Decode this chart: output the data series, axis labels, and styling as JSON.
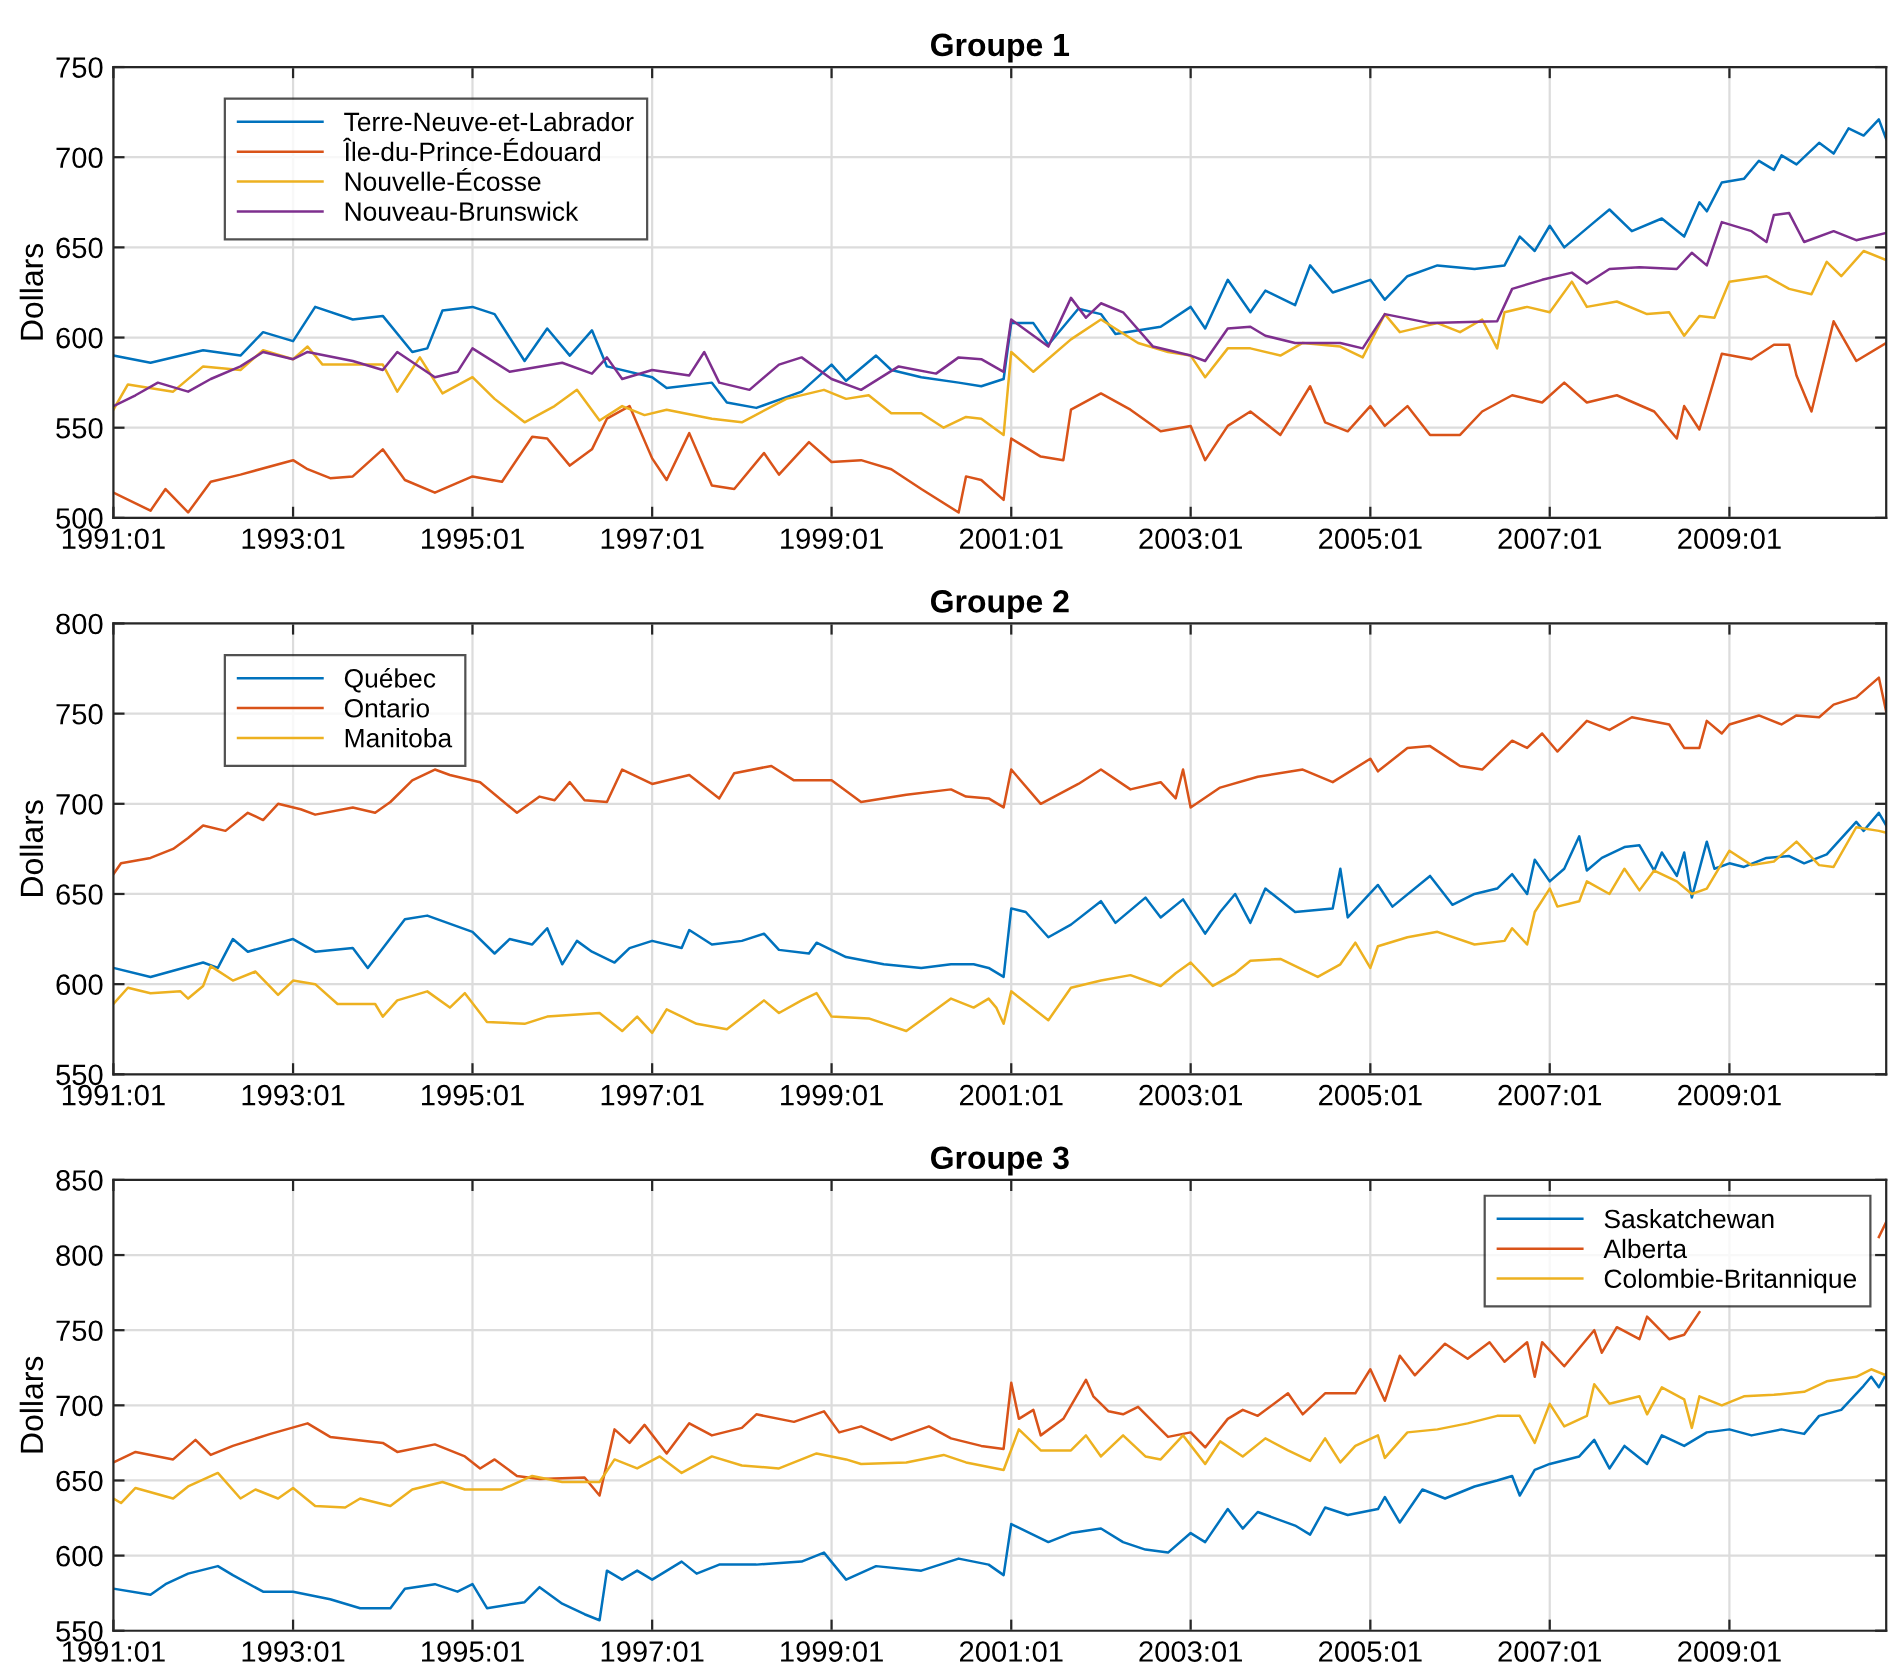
{
  "chart_data": [
    {
      "type": "line",
      "title": "Groupe 1",
      "ylabel": "Dollars",
      "xlim": [
        "1991-01",
        "2010-10"
      ],
      "ylim": [
        500,
        750
      ],
      "yticks": [
        500,
        550,
        600,
        650,
        700,
        750
      ],
      "xticks": [
        {
          "value": "1991-01",
          "label": "1991:01"
        },
        {
          "value": "1993-01",
          "label": "1993:01"
        },
        {
          "value": "1995-01",
          "label": "1995:01"
        },
        {
          "value": "1997-01",
          "label": "1997:01"
        },
        {
          "value": "1999-01",
          "label": "1999:01"
        },
        {
          "value": "2001-01",
          "label": "2001:01"
        },
        {
          "value": "2003-01",
          "label": "2003:01"
        },
        {
          "value": "2005-01",
          "label": "2005:01"
        },
        {
          "value": "2007-01",
          "label": "2007:01"
        },
        {
          "value": "2009-01",
          "label": "2009:01"
        }
      ],
      "grid": true,
      "legend": "top left",
      "series": [
        {
          "name": "Terre-Neuve-et-Labrador",
          "color": "#0072bd",
          "x": [
            "1991-01",
            "1991-06",
            "1992-01",
            "1992-06",
            "1992-09",
            "1993-01",
            "1993-04",
            "1993-09",
            "1994-01",
            "1994-05",
            "1994-07",
            "1994-09",
            "1995-01",
            "1995-04",
            "1995-08",
            "1995-11",
            "1996-02",
            "1996-05",
            "1996-07",
            "1997-01",
            "1997-03",
            "1997-09",
            "1997-11",
            "1998-03",
            "1998-09",
            "1999-01",
            "1999-03",
            "1999-07",
            "1999-09",
            "2000-01",
            "2000-06",
            "2000-09",
            "2000-12",
            "2001-01",
            "2001-04",
            "2001-06",
            "2001-10",
            "2002-01",
            "2002-03",
            "2002-09",
            "2003-01",
            "2003-03",
            "2003-06",
            "2003-09",
            "2003-11",
            "2004-03",
            "2004-05",
            "2004-08",
            "2005-01",
            "2005-03",
            "2005-06",
            "2005-10",
            "2006-03",
            "2006-07",
            "2006-09",
            "2006-11",
            "2007-01",
            "2007-03",
            "2007-07",
            "2007-09",
            "2007-12",
            "2008-04",
            "2008-07",
            "2008-09",
            "2008-10",
            "2008-12",
            "2009-03",
            "2009-05",
            "2009-07",
            "2009-08",
            "2009-10",
            "2010-01",
            "2010-03",
            "2010-05",
            "2010-07",
            "2010-09",
            "2010-10"
          ],
          "values": [
            590,
            586,
            593,
            590,
            603,
            598,
            617,
            610,
            612,
            592,
            594,
            615,
            617,
            613,
            587,
            605,
            590,
            604,
            584,
            578,
            572,
            575,
            564,
            561,
            570,
            585,
            576,
            590,
            582,
            578,
            575,
            573,
            577,
            608,
            608,
            596,
            616,
            613,
            602,
            606,
            617,
            605,
            632,
            614,
            626,
            618,
            640,
            625,
            632,
            621,
            634,
            640,
            638,
            640,
            656,
            648,
            662,
            650,
            664,
            671,
            659,
            666,
            656,
            675,
            670,
            686,
            688,
            698,
            693,
            701,
            696,
            708,
            702,
            716,
            712,
            721,
            710
          ]
        },
        {
          "name": "Île-du-Prince-Édouard",
          "color": "#d95319",
          "x": [
            "1991-01",
            "1991-06",
            "1991-08",
            "1991-11",
            "1992-02",
            "1992-06",
            "1993-01",
            "1993-03",
            "1993-06",
            "1993-09",
            "1994-01",
            "1994-04",
            "1994-08",
            "1995-01",
            "1995-05",
            "1995-09",
            "1995-11",
            "1996-02",
            "1996-05",
            "1996-07",
            "1996-10",
            "1997-01",
            "1997-03",
            "1997-06",
            "1997-09",
            "1997-12",
            "1998-04",
            "1998-06",
            "1998-10",
            "1999-01",
            "1999-05",
            "1999-09",
            "2000-01",
            "2000-06",
            "2000-07",
            "2000-09",
            "2000-12",
            "2001-01",
            "2001-05",
            "2001-08",
            "2001-09",
            "2002-01",
            "2002-05",
            "2002-09",
            "2003-01",
            "2003-03",
            "2003-06",
            "2003-09",
            "2004-01",
            "2004-05",
            "2004-07",
            "2004-10",
            "2005-01",
            "2005-03",
            "2005-06",
            "2005-09",
            "2006-01",
            "2006-04",
            "2006-08",
            "2006-12",
            "2007-03",
            "2007-06",
            "2007-10",
            "2008-03",
            "2008-06",
            "2008-07",
            "2008-09",
            "2008-12",
            "2009-04",
            "2009-07",
            "2009-09",
            "2009-10",
            "2009-12",
            "2010-03",
            "2010-06",
            "2010-10"
          ],
          "values": [
            514,
            504,
            516,
            503,
            520,
            524,
            532,
            527,
            522,
            523,
            538,
            521,
            514,
            523,
            520,
            545,
            544,
            529,
            538,
            555,
            562,
            533,
            521,
            547,
            518,
            516,
            536,
            524,
            542,
            531,
            532,
            527,
            516,
            503,
            523,
            521,
            510,
            544,
            534,
            532,
            560,
            569,
            560,
            548,
            551,
            532,
            551,
            559,
            546,
            573,
            553,
            548,
            562,
            551,
            562,
            546,
            546,
            559,
            568,
            564,
            575,
            564,
            568,
            559,
            544,
            562,
            549,
            591,
            588,
            596,
            596,
            579,
            559,
            609,
            587,
            597
          ]
        },
        {
          "name": "Nouvelle-Écosse",
          "color": "#edb120",
          "x": [
            "1991-01",
            "1991-03",
            "1991-09",
            "1992-01",
            "1992-06",
            "1992-09",
            "1993-01",
            "1993-03",
            "1993-05",
            "1994-01",
            "1994-03",
            "1994-06",
            "1994-09",
            "1995-01",
            "1995-04",
            "1995-08",
            "1995-12",
            "1996-03",
            "1996-06",
            "1996-09",
            "1996-12",
            "1997-03",
            "1997-09",
            "1998-01",
            "1998-07",
            "1998-12",
            "1999-03",
            "1999-06",
            "1999-09",
            "2000-01",
            "2000-04",
            "2000-07",
            "2000-09",
            "2000-12",
            "2001-01",
            "2001-04",
            "2001-09",
            "2002-01",
            "2002-06",
            "2002-10",
            "2003-01",
            "2003-03",
            "2003-06",
            "2003-09",
            "2004-01",
            "2004-04",
            "2004-09",
            "2004-12",
            "2005-03",
            "2005-05",
            "2005-10",
            "2006-01",
            "2006-04",
            "2006-06",
            "2006-07",
            "2006-10",
            "2007-01",
            "2007-04",
            "2007-06",
            "2007-10",
            "2008-02",
            "2008-05",
            "2008-07",
            "2008-09",
            "2008-11",
            "2009-01",
            "2009-06",
            "2009-09",
            "2009-12",
            "2010-02",
            "2010-04",
            "2010-07",
            "2010-10"
          ],
          "values": [
            560,
            574,
            570,
            584,
            582,
            593,
            588,
            595,
            585,
            585,
            570,
            589,
            569,
            578,
            566,
            553,
            562,
            571,
            554,
            562,
            557,
            560,
            555,
            553,
            566,
            571,
            566,
            568,
            558,
            558,
            550,
            556,
            555,
            546,
            592,
            581,
            599,
            610,
            597,
            592,
            590,
            578,
            594,
            594,
            590,
            597,
            595,
            589,
            613,
            603,
            608,
            603,
            610,
            594,
            614,
            617,
            614,
            631,
            617,
            620,
            613,
            614,
            601,
            612,
            611,
            631,
            634,
            627,
            624,
            642,
            634,
            648,
            643
          ]
        },
        {
          "name": "Nouveau-Brunswick",
          "color": "#7e2f8e",
          "x": [
            "1991-01",
            "1991-04",
            "1991-07",
            "1991-11",
            "1992-02",
            "1992-06",
            "1992-09",
            "1993-01",
            "1993-03",
            "1993-09",
            "1994-01",
            "1994-03",
            "1994-08",
            "1994-11",
            "1995-01",
            "1995-06",
            "1996-01",
            "1996-05",
            "1996-07",
            "1996-09",
            "1997-01",
            "1997-06",
            "1997-08",
            "1997-10",
            "1998-02",
            "1998-06",
            "1998-09",
            "1999-01",
            "1999-05",
            "1999-10",
            "2000-03",
            "2000-06",
            "2000-09",
            "2000-12",
            "2001-01",
            "2001-06",
            "2001-09",
            "2001-11",
            "2002-01",
            "2002-04",
            "2002-08",
            "2003-01",
            "2003-03",
            "2003-06",
            "2003-09",
            "2003-11",
            "2004-03",
            "2004-09",
            "2004-12",
            "2005-03",
            "2005-09",
            "2006-06",
            "2006-08",
            "2006-12",
            "2007-04",
            "2007-06",
            "2007-09",
            "2008-01",
            "2008-06",
            "2008-08",
            "2008-10",
            "2008-12",
            "2009-04",
            "2009-06",
            "2009-07",
            "2009-09",
            "2009-11",
            "2010-03",
            "2010-06",
            "2010-10"
          ],
          "values": [
            562,
            568,
            575,
            570,
            577,
            584,
            592,
            588,
            592,
            587,
            582,
            592,
            578,
            581,
            594,
            581,
            586,
            580,
            589,
            577,
            582,
            579,
            592,
            575,
            571,
            585,
            589,
            577,
            571,
            584,
            580,
            589,
            588,
            581,
            610,
            595,
            622,
            611,
            619,
            614,
            595,
            590,
            587,
            605,
            606,
            601,
            597,
            597,
            594,
            613,
            608,
            609,
            627,
            632,
            636,
            630,
            638,
            639,
            638,
            647,
            640,
            664,
            659,
            653,
            668,
            669,
            653,
            659,
            654,
            658
          ]
        }
      ]
    },
    {
      "type": "line",
      "title": "Groupe 2",
      "ylabel": "Dollars",
      "xlim": [
        "1991-01",
        "2010-10"
      ],
      "ylim": [
        550,
        800
      ],
      "yticks": [
        550,
        600,
        650,
        700,
        750,
        800
      ],
      "xticks": [
        {
          "value": "1991-01",
          "label": "1991:01"
        },
        {
          "value": "1993-01",
          "label": "1993:01"
        },
        {
          "value": "1995-01",
          "label": "1995:01"
        },
        {
          "value": "1997-01",
          "label": "1997:01"
        },
        {
          "value": "1999-01",
          "label": "1999:01"
        },
        {
          "value": "2001-01",
          "label": "2001:01"
        },
        {
          "value": "2003-01",
          "label": "2003:01"
        },
        {
          "value": "2005-01",
          "label": "2005:01"
        },
        {
          "value": "2007-01",
          "label": "2007:01"
        },
        {
          "value": "2009-01",
          "label": "2009:01"
        }
      ],
      "grid": true,
      "legend": "top left",
      "series": [
        {
          "name": "Québec",
          "color": "#0072bd",
          "x": [
            "1991-01",
            "1991-06",
            "1992-01",
            "1992-03",
            "1992-05",
            "1992-07",
            "1993-01",
            "1993-04",
            "1993-09",
            "1993-11",
            "1994-04",
            "1994-07",
            "1995-01",
            "1995-04",
            "1995-06",
            "1995-09",
            "1995-11",
            "1996-01",
            "1996-03",
            "1996-05",
            "1996-08",
            "1996-10",
            "1997-01",
            "1997-05",
            "1997-06",
            "1997-09",
            "1998-01",
            "1998-04",
            "1998-06",
            "1998-10",
            "1998-11",
            "1999-03",
            "1999-08",
            "2000-01",
            "2000-05",
            "2000-08",
            "2000-10",
            "2000-12",
            "2001-01",
            "2001-03",
            "2001-06",
            "2001-09",
            "2002-01",
            "2002-03",
            "2002-07",
            "2002-09",
            "2002-12",
            "2003-03",
            "2003-05",
            "2003-07",
            "2003-09",
            "2003-11",
            "2004-03",
            "2004-08",
            "2004-09",
            "2004-10",
            "2005-02",
            "2005-04",
            "2005-09",
            "2005-12",
            "2006-03",
            "2006-06",
            "2006-08",
            "2006-10",
            "2006-11",
            "2007-01",
            "2007-03",
            "2007-05",
            "2007-06",
            "2007-08",
            "2007-11",
            "2008-01",
            "2008-03",
            "2008-04",
            "2008-06",
            "2008-07",
            "2008-08",
            "2008-10",
            "2008-11",
            "2009-01",
            "2009-03",
            "2009-06",
            "2009-09",
            "2009-11",
            "2010-02",
            "2010-06",
            "2010-07",
            "2010-09",
            "2010-10"
          ],
          "values": [
            609,
            604,
            612,
            609,
            625,
            618,
            625,
            618,
            620,
            609,
            636,
            638,
            629,
            617,
            625,
            622,
            631,
            611,
            624,
            618,
            612,
            620,
            624,
            620,
            630,
            622,
            624,
            628,
            619,
            617,
            623,
            615,
            611,
            609,
            611,
            611,
            609,
            604,
            642,
            640,
            626,
            633,
            646,
            634,
            648,
            637,
            647,
            628,
            640,
            650,
            634,
            653,
            640,
            642,
            664,
            637,
            655,
            643,
            660,
            644,
            650,
            653,
            661,
            650,
            669,
            657,
            664,
            682,
            663,
            670,
            676,
            677,
            663,
            673,
            660,
            673,
            648,
            679,
            664,
            667,
            665,
            670,
            671,
            667,
            672,
            690,
            685,
            695,
            688
          ]
        },
        {
          "name": "Ontario",
          "color": "#d95319",
          "x": [
            "1991-01",
            "1991-02",
            "1991-06",
            "1991-09",
            "1991-11",
            "1992-01",
            "1992-04",
            "1992-07",
            "1992-09",
            "1992-11",
            "1993-02",
            "1993-04",
            "1993-09",
            "1993-12",
            "1994-02",
            "1994-05",
            "1994-08",
            "1994-10",
            "1995-02",
            "1995-07",
            "1995-10",
            "1995-12",
            "1996-02",
            "1996-04",
            "1996-07",
            "1996-09",
            "1997-01",
            "1997-06",
            "1997-10",
            "1997-12",
            "1998-05",
            "1998-08",
            "1999-01",
            "1999-05",
            "1999-11",
            "2000-05",
            "2000-07",
            "2000-10",
            "2000-12",
            "2001-01",
            "2001-05",
            "2001-10",
            "2002-01",
            "2002-05",
            "2002-09",
            "2002-11",
            "2002-12",
            "2003-01",
            "2003-05",
            "2003-10",
            "2004-04",
            "2004-08",
            "2005-01",
            "2005-02",
            "2005-06",
            "2005-09",
            "2006-01",
            "2006-04",
            "2006-08",
            "2006-10",
            "2006-12",
            "2007-02",
            "2007-06",
            "2007-09",
            "2007-12",
            "2008-05",
            "2008-07",
            "2008-09",
            "2008-10",
            "2008-12",
            "2009-01",
            "2009-05",
            "2009-08",
            "2009-10",
            "2010-01",
            "2010-03",
            "2010-06",
            "2010-09",
            "2010-10"
          ],
          "values": [
            661,
            667,
            670,
            675,
            681,
            688,
            685,
            695,
            691,
            700,
            697,
            694,
            698,
            695,
            701,
            713,
            719,
            716,
            712,
            695,
            704,
            702,
            712,
            702,
            701,
            719,
            711,
            716,
            703,
            717,
            721,
            713,
            713,
            701,
            705,
            708,
            704,
            703,
            698,
            719,
            700,
            711,
            719,
            708,
            712,
            703,
            719,
            698,
            709,
            715,
            719,
            712,
            725,
            718,
            731,
            732,
            721,
            719,
            735,
            731,
            739,
            729,
            746,
            741,
            748,
            744,
            731,
            731,
            746,
            739,
            744,
            749,
            744,
            749,
            748,
            755,
            759,
            770,
            751
          ]
        },
        {
          "name": "Manitoba",
          "color": "#edb120",
          "x": [
            "1991-01",
            "1991-03",
            "1991-06",
            "1991-10",
            "1991-11",
            "1992-01",
            "1992-02",
            "1992-05",
            "1992-08",
            "1992-11",
            "1993-01",
            "1993-04",
            "1993-07",
            "1993-12",
            "1994-01",
            "1994-03",
            "1994-07",
            "1994-10",
            "1994-12",
            "1995-03",
            "1995-08",
            "1995-11",
            "1996-06",
            "1996-09",
            "1996-11",
            "1997-01",
            "1997-03",
            "1997-07",
            "1997-11",
            "1998-04",
            "1998-06",
            "1998-09",
            "1998-11",
            "1999-01",
            "1999-06",
            "1999-11",
            "2000-05",
            "2000-08",
            "2000-10",
            "2000-11",
            "2000-12",
            "2001-01",
            "2001-06",
            "2001-09",
            "2002-01",
            "2002-05",
            "2002-09",
            "2002-11",
            "2003-01",
            "2003-04",
            "2003-07",
            "2003-09",
            "2004-01",
            "2004-06",
            "2004-09",
            "2004-11",
            "2005-01",
            "2005-02",
            "2005-06",
            "2005-10",
            "2006-03",
            "2006-07",
            "2006-08",
            "2006-10",
            "2006-11",
            "2007-01",
            "2007-02",
            "2007-05",
            "2007-06",
            "2007-09",
            "2007-11",
            "2008-01",
            "2008-03",
            "2008-06",
            "2008-08",
            "2008-10",
            "2009-01",
            "2009-04",
            "2009-07",
            "2009-10",
            "2010-01",
            "2010-03",
            "2010-06",
            "2010-09",
            "2010-10"
          ],
          "values": [
            589,
            598,
            595,
            596,
            592,
            599,
            610,
            602,
            607,
            594,
            602,
            600,
            589,
            589,
            582,
            591,
            596,
            587,
            595,
            579,
            578,
            582,
            584,
            574,
            582,
            573,
            586,
            578,
            575,
            591,
            584,
            591,
            595,
            582,
            581,
            574,
            592,
            587,
            592,
            587,
            578,
            596,
            580,
            598,
            602,
            605,
            599,
            606,
            612,
            599,
            606,
            613,
            614,
            604,
            611,
            623,
            609,
            621,
            626,
            629,
            622,
            624,
            631,
            622,
            640,
            653,
            643,
            646,
            657,
            650,
            664,
            652,
            663,
            657,
            650,
            653,
            674,
            666,
            668,
            679,
            666,
            665,
            687,
            685,
            684
          ]
        }
      ]
    },
    {
      "type": "line",
      "title": "Groupe 3",
      "ylabel": "Dollars",
      "xlim": [
        "1991-01",
        "2010-10"
      ],
      "ylim": [
        550,
        850
      ],
      "yticks": [
        550,
        600,
        650,
        700,
        750,
        800,
        850
      ],
      "xticks": [
        {
          "value": "1991-01",
          "label": "1991:01"
        },
        {
          "value": "1993-01",
          "label": "1993:01"
        },
        {
          "value": "1995-01",
          "label": "1995:01"
        },
        {
          "value": "1997-01",
          "label": "1997:01"
        },
        {
          "value": "1999-01",
          "label": "1999:01"
        },
        {
          "value": "2001-01",
          "label": "2001:01"
        },
        {
          "value": "2003-01",
          "label": "2003:01"
        },
        {
          "value": "2005-01",
          "label": "2005:01"
        },
        {
          "value": "2007-01",
          "label": "2007:01"
        },
        {
          "value": "2009-01",
          "label": "2009:01"
        }
      ],
      "grid": true,
      "legend": "top right",
      "series": [
        {
          "name": "Saskatchewan",
          "color": "#0072bd",
          "x": [
            "1991-01",
            "1991-06",
            "1991-08",
            "1991-11",
            "1992-03",
            "1992-05",
            "1992-09",
            "1993-01",
            "1993-06",
            "1993-10",
            "1994-02",
            "1994-04",
            "1994-08",
            "1994-11",
            "1995-01",
            "1995-03",
            "1995-08",
            "1995-10",
            "1996-01",
            "1996-04",
            "1996-06",
            "1996-07",
            "1996-09",
            "1996-11",
            "1997-01",
            "1997-05",
            "1997-07",
            "1997-10",
            "1998-03",
            "1998-09",
            "1998-12",
            "1999-03",
            "1999-07",
            "2000-01",
            "2000-06",
            "2000-10",
            "2000-12",
            "2001-01",
            "2001-06",
            "2001-09",
            "2002-01",
            "2002-04",
            "2002-07",
            "2002-10",
            "2003-01",
            "2003-03",
            "2003-06",
            "2003-08",
            "2003-10",
            "2004-03",
            "2004-05",
            "2004-07",
            "2004-10",
            "2005-02",
            "2005-03",
            "2005-05",
            "2005-08",
            "2005-11",
            "2006-03",
            "2006-06",
            "2006-08",
            "2006-09",
            "2006-11",
            "2007-01",
            "2007-05",
            "2007-07",
            "2007-09",
            "2007-11",
            "2008-02",
            "2008-04",
            "2008-07",
            "2008-10",
            "2009-01",
            "2009-04",
            "2009-08",
            "2009-11",
            "2010-01",
            "2010-04",
            "2010-07",
            "2010-08",
            "2010-09",
            "2010-10"
          ],
          "values": [
            578,
            574,
            581,
            588,
            593,
            587,
            576,
            576,
            571,
            565,
            565,
            578,
            581,
            576,
            581,
            565,
            569,
            579,
            568,
            561,
            557,
            590,
            584,
            590,
            584,
            596,
            588,
            594,
            594,
            596,
            602,
            584,
            593,
            590,
            598,
            594,
            587,
            621,
            609,
            615,
            618,
            609,
            604,
            602,
            615,
            609,
            631,
            618,
            629,
            620,
            614,
            632,
            627,
            631,
            639,
            622,
            644,
            638,
            646,
            650,
            653,
            640,
            657,
            661,
            666,
            677,
            658,
            673,
            661,
            680,
            673,
            682,
            684,
            680,
            684,
            681,
            693,
            697,
            713,
            719,
            712,
            721
          ]
        },
        {
          "name": "Alberta",
          "color": "#d95319",
          "x": [
            "1991-01",
            "1991-04",
            "1991-09",
            "1991-12",
            "1992-02",
            "1992-05",
            "1992-10",
            "1993-03",
            "1993-06",
            "1994-01",
            "1994-03",
            "1994-08",
            "1994-12",
            "1995-02",
            "1995-04",
            "1995-07",
            "1995-10",
            "1996-04",
            "1996-06",
            "1996-08",
            "1996-10",
            "1996-12",
            "1997-03",
            "1997-06",
            "1997-09",
            "1998-01",
            "1998-03",
            "1998-08",
            "1998-12",
            "1999-02",
            "1999-05",
            "1999-09",
            "2000-02",
            "2000-05",
            "2000-09",
            "2000-12",
            "2001-01",
            "2001-02",
            "2001-04",
            "2001-05",
            "2001-08",
            "2001-11",
            "2001-12",
            "2002-02",
            "2002-04",
            "2002-06",
            "2002-10",
            "2003-01",
            "2003-03",
            "2003-06",
            "2003-08",
            "2003-10",
            "2004-02",
            "2004-04",
            "2004-07",
            "2004-11",
            "2005-01",
            "2005-03",
            "2005-05",
            "2005-07",
            "2005-11",
            "2006-02",
            "2006-05",
            "2006-07",
            "2006-10",
            "2006-11",
            "2006-12",
            "2007-03",
            "2007-07",
            "2007-08",
            "2007-10",
            "2008-01",
            "2008-02",
            "2008-05",
            "2008-07",
            "2008-09",
            "2009-09",
            "2010-09",
            "2010-10"
          ],
          "values": [
            662,
            669,
            664,
            677,
            667,
            673,
            681,
            688,
            679,
            675,
            669,
            674,
            666,
            658,
            664,
            653,
            651,
            652,
            640,
            684,
            675,
            687,
            668,
            688,
            680,
            685,
            694,
            689,
            696,
            682,
            686,
            677,
            686,
            678,
            673,
            671,
            715,
            691,
            697,
            680,
            691,
            717,
            706,
            696,
            694,
            699,
            679,
            682,
            672,
            691,
            697,
            693,
            708,
            694,
            708,
            708,
            724,
            703,
            733,
            720,
            741,
            731,
            742,
            729,
            742,
            719,
            742,
            726,
            750,
            735,
            752,
            744,
            759,
            744,
            747,
            762,
            null,
            812,
            822
          ]
        },
        {
          "name": "Colombie-Britannique",
          "color": "#edb120",
          "x": [
            "1991-01",
            "1991-02",
            "1991-04",
            "1991-09",
            "1991-11",
            "1992-03",
            "1992-06",
            "1992-08",
            "1992-11",
            "1993-01",
            "1993-04",
            "1993-08",
            "1993-10",
            "1994-02",
            "1994-05",
            "1994-09",
            "1994-12",
            "1995-05",
            "1995-09",
            "1996-01",
            "1996-06",
            "1996-08",
            "1996-11",
            "1997-02",
            "1997-05",
            "1997-09",
            "1998-01",
            "1998-06",
            "1998-11",
            "1999-03",
            "1999-05",
            "1999-11",
            "2000-04",
            "2000-07",
            "2000-08",
            "2000-12",
            "2001-02",
            "2001-05",
            "2001-09",
            "2001-11",
            "2002-01",
            "2002-04",
            "2002-07",
            "2002-09",
            "2002-12",
            "2003-03",
            "2003-05",
            "2003-08",
            "2003-11",
            "2004-02",
            "2004-05",
            "2004-07",
            "2004-09",
            "2004-11",
            "2005-02",
            "2005-03",
            "2005-06",
            "2005-10",
            "2006-02",
            "2006-06",
            "2006-09",
            "2006-11",
            "2007-01",
            "2007-03",
            "2007-06",
            "2007-07",
            "2007-09",
            "2008-01",
            "2008-02",
            "2008-04",
            "2008-07",
            "2008-08",
            "2008-09",
            "2008-12",
            "2009-03",
            "2009-07",
            "2009-11",
            "2010-02",
            "2010-06",
            "2010-08",
            "2010-10"
          ],
          "values": [
            638,
            635,
            645,
            638,
            646,
            655,
            638,
            644,
            638,
            645,
            633,
            632,
            638,
            633,
            644,
            649,
            644,
            644,
            653,
            649,
            649,
            664,
            658,
            666,
            655,
            666,
            660,
            658,
            668,
            664,
            661,
            662,
            667,
            662,
            661,
            657,
            684,
            670,
            670,
            680,
            666,
            680,
            666,
            664,
            680,
            661,
            676,
            666,
            678,
            670,
            663,
            678,
            662,
            673,
            680,
            665,
            682,
            684,
            688,
            693,
            693,
            675,
            701,
            686,
            693,
            714,
            701,
            706,
            694,
            712,
            704,
            685,
            706,
            700,
            706,
            707,
            709,
            716,
            719,
            724,
            720
          ]
        }
      ]
    }
  ]
}
